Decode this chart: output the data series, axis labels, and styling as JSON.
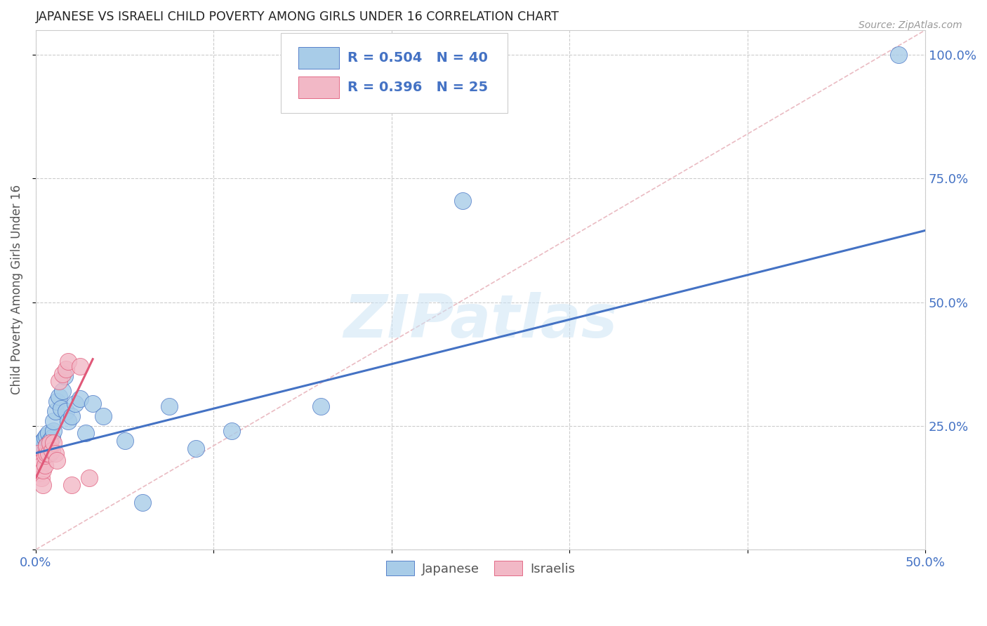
{
  "title": "JAPANESE VS ISRAELI CHILD POVERTY AMONG GIRLS UNDER 16 CORRELATION CHART",
  "source": "Source: ZipAtlas.com",
  "ylabel": "Child Poverty Among Girls Under 16",
  "xlim": [
    0.0,
    0.5
  ],
  "ylim": [
    0.0,
    1.05
  ],
  "xticks": [
    0.0,
    0.1,
    0.2,
    0.3,
    0.4,
    0.5
  ],
  "xticklabels": [
    "0.0%",
    "",
    "",
    "",
    "",
    "50.0%"
  ],
  "yticks": [
    0.0,
    0.25,
    0.5,
    0.75,
    1.0
  ],
  "yticklabels": [
    "",
    "25.0%",
    "50.0%",
    "75.0%",
    "100.0%"
  ],
  "japanese_color": "#a8cce8",
  "israeli_color": "#f2b8c6",
  "trendline_japanese_color": "#4472c4",
  "trendline_israeli_color": "#e05878",
  "diagonal_color": "#e8b4bc",
  "legend_r_japanese": "R = 0.504",
  "legend_n_japanese": "N = 40",
  "legend_r_israeli": "R = 0.396",
  "legend_n_israeli": "N = 25",
  "watermark": "ZIPatlas",
  "japanese_x": [
    0.001,
    0.002,
    0.002,
    0.003,
    0.003,
    0.004,
    0.004,
    0.005,
    0.005,
    0.006,
    0.006,
    0.007,
    0.007,
    0.008,
    0.008,
    0.009,
    0.01,
    0.01,
    0.011,
    0.012,
    0.013,
    0.014,
    0.015,
    0.016,
    0.017,
    0.018,
    0.02,
    0.022,
    0.025,
    0.028,
    0.032,
    0.038,
    0.05,
    0.06,
    0.075,
    0.09,
    0.11,
    0.16,
    0.24,
    0.485
  ],
  "japanese_y": [
    0.195,
    0.2,
    0.21,
    0.195,
    0.215,
    0.205,
    0.22,
    0.2,
    0.225,
    0.21,
    0.23,
    0.215,
    0.235,
    0.22,
    0.195,
    0.225,
    0.24,
    0.26,
    0.28,
    0.3,
    0.31,
    0.285,
    0.32,
    0.35,
    0.28,
    0.26,
    0.27,
    0.295,
    0.305,
    0.235,
    0.295,
    0.27,
    0.22,
    0.095,
    0.29,
    0.205,
    0.24,
    0.29,
    0.705,
    1.0
  ],
  "israeli_x": [
    0.001,
    0.001,
    0.002,
    0.002,
    0.003,
    0.003,
    0.004,
    0.004,
    0.005,
    0.005,
    0.006,
    0.006,
    0.007,
    0.008,
    0.009,
    0.01,
    0.011,
    0.012,
    0.013,
    0.015,
    0.017,
    0.018,
    0.02,
    0.025,
    0.03
  ],
  "israeli_y": [
    0.195,
    0.175,
    0.175,
    0.155,
    0.17,
    0.145,
    0.13,
    0.16,
    0.17,
    0.19,
    0.195,
    0.21,
    0.195,
    0.215,
    0.2,
    0.215,
    0.195,
    0.18,
    0.34,
    0.355,
    0.365,
    0.38,
    0.13,
    0.37,
    0.145
  ],
  "japanese_trend_x": [
    0.0,
    0.5
  ],
  "japanese_trend_y": [
    0.195,
    0.645
  ],
  "israeli_trend_x": [
    0.0,
    0.032
  ],
  "israeli_trend_y": [
    0.145,
    0.385
  ]
}
